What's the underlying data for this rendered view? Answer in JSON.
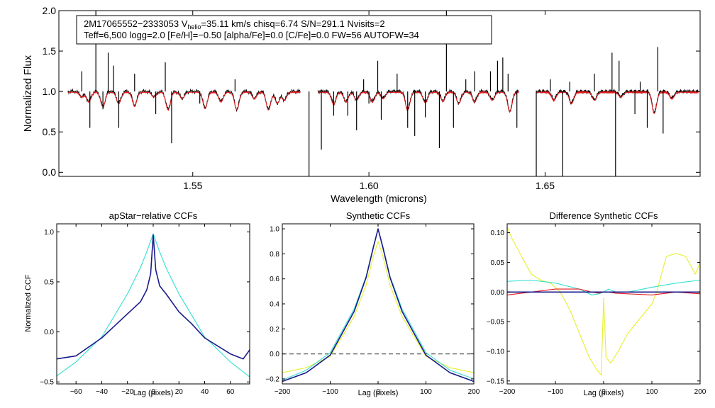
{
  "colors": {
    "observed": "#000000",
    "model": "#e41a1c",
    "cyan": "#2fe0d0",
    "navy": "#1a1a8c",
    "red": "#e41a1c",
    "yellow": "#e6f02a",
    "grey": "#555555"
  },
  "chart_data": [
    {
      "type": "line",
      "id": "spectrum",
      "title": "",
      "xlabel": "Wavelength (microns)",
      "ylabel": "Normalized Flux",
      "xlim": [
        1.512,
        1.694
      ],
      "ylim": [
        -0.05,
        2.0
      ],
      "xticks": [
        1.55,
        1.6,
        1.65
      ],
      "xtick_labels": [
        "1.55",
        "1.60",
        "1.65"
      ],
      "yticks": [
        0.0,
        0.5,
        1.0,
        1.5,
        2.0
      ],
      "ytick_labels": [
        "0.0",
        "0.5",
        "1.0",
        "1.5",
        "2.0"
      ],
      "info_line1_prefix": "2M17065552−2333053  V",
      "info_line1_sub": "helio",
      "info_line1_suffix": "=35.11 km/s  chisq=6.74  S/N=291.1  Nvisits=2",
      "info_line2": "Teff=6,500 logg=2.0 [Fe/H]=−0.50 [alpha/Fe]=0.0 [C/Fe]=0.0 FW=56 AUTOFW=34",
      "chips": [
        [
          1.5145,
          1.5805
        ],
        [
          1.5855,
          1.6425
        ],
        [
          1.6475,
          1.6935
        ]
      ],
      "absorption_lines": [
        {
          "w": 1.5185,
          "d": 0.06
        },
        {
          "w": 1.5205,
          "d": 0.12
        },
        {
          "w": 1.5245,
          "d": 0.18
        },
        {
          "w": 1.529,
          "d": 0.14
        },
        {
          "w": 1.5335,
          "d": 0.17
        },
        {
          "w": 1.539,
          "d": 0.06
        },
        {
          "w": 1.543,
          "d": 0.22
        },
        {
          "w": 1.547,
          "d": 0.08
        },
        {
          "w": 1.5535,
          "d": 0.2
        },
        {
          "w": 1.558,
          "d": 0.12
        },
        {
          "w": 1.5625,
          "d": 0.22
        },
        {
          "w": 1.5675,
          "d": 0.08
        },
        {
          "w": 1.5715,
          "d": 0.22
        },
        {
          "w": 1.574,
          "d": 0.14
        },
        {
          "w": 1.576,
          "d": 0.1
        },
        {
          "w": 1.59,
          "d": 0.15
        },
        {
          "w": 1.5935,
          "d": 0.12
        },
        {
          "w": 1.5965,
          "d": 0.1
        },
        {
          "w": 1.601,
          "d": 0.12
        },
        {
          "w": 1.604,
          "d": 0.08
        },
        {
          "w": 1.611,
          "d": 0.22
        },
        {
          "w": 1.616,
          "d": 0.13
        },
        {
          "w": 1.621,
          "d": 0.11
        },
        {
          "w": 1.6255,
          "d": 0.14
        },
        {
          "w": 1.63,
          "d": 0.12
        },
        {
          "w": 1.635,
          "d": 0.1
        },
        {
          "w": 1.64,
          "d": 0.24
        },
        {
          "w": 1.6525,
          "d": 0.1
        },
        {
          "w": 1.6575,
          "d": 0.14
        },
        {
          "w": 1.664,
          "d": 0.1
        },
        {
          "w": 1.6715,
          "d": 0.06
        },
        {
          "w": 1.681,
          "d": 0.26
        },
        {
          "w": 1.686,
          "d": 0.08
        }
      ],
      "spikes": [
        {
          "w": 1.5185,
          "top": 1.25
        },
        {
          "w": 1.5208,
          "top": 0.55
        },
        {
          "w": 1.5225,
          "top": 2.0
        },
        {
          "w": 1.5245,
          "top": 0.78
        },
        {
          "w": 1.526,
          "top": 1.48
        },
        {
          "w": 1.5275,
          "top": 1.32
        },
        {
          "w": 1.529,
          "top": 0.55
        },
        {
          "w": 1.5335,
          "top": 1.22
        },
        {
          "w": 1.5395,
          "top": 0.72
        },
        {
          "w": 1.5422,
          "top": 1.36
        },
        {
          "w": 1.544,
          "top": 0.36
        },
        {
          "w": 1.552,
          "top": 0.85
        },
        {
          "w": 1.562,
          "top": 1.15
        },
        {
          "w": 1.583,
          "top": -0.05
        },
        {
          "w": 1.5865,
          "top": 0.28
        },
        {
          "w": 1.59,
          "top": 0.7
        },
        {
          "w": 1.594,
          "top": 0.7
        },
        {
          "w": 1.5965,
          "top": 0.52
        },
        {
          "w": 1.5985,
          "top": 1.15
        },
        {
          "w": 1.6,
          "top": 0.85
        },
        {
          "w": 1.6025,
          "top": 1.38
        },
        {
          "w": 1.6035,
          "top": 0.65
        },
        {
          "w": 1.608,
          "top": 1.22
        },
        {
          "w": 1.611,
          "top": 0.55
        },
        {
          "w": 1.613,
          "top": 0.45
        },
        {
          "w": 1.616,
          "top": 0.68
        },
        {
          "w": 1.62,
          "top": 0.3
        },
        {
          "w": 1.622,
          "top": 2.0
        },
        {
          "w": 1.624,
          "top": 0.55
        },
        {
          "w": 1.6275,
          "top": 1.15
        },
        {
          "w": 1.63,
          "top": 1.25
        },
        {
          "w": 1.6345,
          "top": 1.25
        },
        {
          "w": 1.6365,
          "top": 1.38
        },
        {
          "w": 1.638,
          "top": 1.42
        },
        {
          "w": 1.6395,
          "top": 1.22
        },
        {
          "w": 1.642,
          "top": 0.55
        },
        {
          "w": 1.6475,
          "top": -0.05
        },
        {
          "w": 1.6515,
          "top": 1.15
        },
        {
          "w": 1.655,
          "top": -0.05
        },
        {
          "w": 1.657,
          "top": 1.12
        },
        {
          "w": 1.664,
          "top": 1.22
        },
        {
          "w": 1.669,
          "top": 1.48
        },
        {
          "w": 1.67,
          "top": -0.05
        },
        {
          "w": 1.671,
          "top": 1.38
        },
        {
          "w": 1.6755,
          "top": 0.72
        },
        {
          "w": 1.677,
          "top": 1.12
        },
        {
          "w": 1.679,
          "top": 0.55
        },
        {
          "w": 1.682,
          "top": 1.55
        },
        {
          "w": 1.6835,
          "top": 0.48
        }
      ]
    },
    {
      "type": "line",
      "id": "apstar_ccf",
      "title": "apStar−relative CCFs",
      "xlabel": "Lag (pixels)",
      "ylabel": "Normalized CCF",
      "xlim": [
        -75,
        75
      ],
      "ylim": [
        -0.52,
        1.08
      ],
      "xticks": [
        -60,
        -40,
        -20,
        0,
        20,
        40,
        60
      ],
      "xtick_labels": [
        "−60",
        "−40",
        "−20",
        "0",
        "20",
        "40",
        "60"
      ],
      "yticks": [
        -0.5,
        0.0,
        0.5,
        1.0
      ],
      "ytick_labels": [
        "−0.5",
        "0.0",
        "0.5",
        "1.0"
      ],
      "series": [
        {
          "name": "cyan",
          "color_key": "cyan",
          "x": [
            -75,
            -60,
            -40,
            -20,
            -10,
            -5,
            0,
            5,
            10,
            20,
            40,
            60,
            75
          ],
          "y": [
            -0.44,
            -0.3,
            -0.05,
            0.38,
            0.64,
            0.8,
            0.98,
            0.8,
            0.64,
            0.38,
            -0.05,
            -0.3,
            -0.45
          ]
        },
        {
          "name": "navy",
          "color_key": "navy",
          "x": [
            -75,
            -60,
            -40,
            -30,
            -20,
            -10,
            -5,
            -2,
            0,
            2,
            5,
            10,
            20,
            30,
            40,
            60,
            70,
            75
          ],
          "y": [
            -0.27,
            -0.24,
            -0.06,
            0.06,
            0.18,
            0.3,
            0.42,
            0.58,
            0.97,
            0.62,
            0.46,
            0.38,
            0.2,
            0.08,
            -0.06,
            -0.22,
            -0.27,
            -0.18
          ]
        }
      ]
    },
    {
      "type": "line",
      "id": "synthetic_ccf",
      "title": "Synthetic CCFs",
      "xlabel": "Lag (pixels)",
      "ylabel": "",
      "xlim": [
        -200,
        200
      ],
      "ylim": [
        -0.24,
        1.04
      ],
      "xticks": [
        -200,
        -100,
        0,
        100,
        200
      ],
      "xtick_labels": [
        "−200",
        "−100",
        "0",
        "100",
        "200"
      ],
      "yticks": [
        -0.2,
        0.0,
        0.2,
        0.4,
        0.6,
        0.8,
        1.0
      ],
      "ytick_labels": [
        "−0.2",
        "0.0",
        "0.2",
        "0.4",
        "0.6",
        "0.8",
        "1.0"
      ],
      "zero_line": 0.0,
      "series": [
        {
          "name": "yellow",
          "color_key": "yellow",
          "x": [
            -200,
            -150,
            -100,
            -50,
            -25,
            -10,
            0,
            10,
            25,
            50,
            100,
            150,
            200
          ],
          "y": [
            -0.15,
            -0.11,
            -0.02,
            0.3,
            0.55,
            0.78,
            0.9,
            0.78,
            0.55,
            0.3,
            -0.02,
            -0.11,
            -0.15
          ]
        },
        {
          "name": "cyan",
          "color_key": "cyan",
          "x": [
            -200,
            -150,
            -100,
            -50,
            -25,
            -10,
            0,
            10,
            25,
            50,
            100,
            150,
            200
          ],
          "y": [
            -0.21,
            -0.13,
            0.01,
            0.36,
            0.62,
            0.86,
            1.0,
            0.86,
            0.62,
            0.36,
            0.01,
            -0.13,
            -0.2
          ]
        },
        {
          "name": "red",
          "color_key": "red",
          "x": [
            -200,
            -150,
            -100,
            -50,
            -25,
            -10,
            0,
            10,
            25,
            50,
            100,
            150,
            200
          ],
          "y": [
            -0.22,
            -0.15,
            -0.01,
            0.34,
            0.61,
            0.85,
            1.0,
            0.85,
            0.61,
            0.34,
            -0.01,
            -0.15,
            -0.22
          ]
        },
        {
          "name": "navy",
          "color_key": "navy",
          "x": [
            -200,
            -150,
            -100,
            -50,
            -25,
            -10,
            0,
            10,
            25,
            50,
            100,
            150,
            200
          ],
          "y": [
            -0.22,
            -0.15,
            -0.01,
            0.34,
            0.61,
            0.85,
            1.0,
            0.85,
            0.61,
            0.34,
            -0.01,
            -0.15,
            -0.22
          ]
        }
      ]
    },
    {
      "type": "line",
      "id": "difference_ccf",
      "title": "Difference Synthetic CCFs",
      "xlabel": "Lag (pixels)",
      "ylabel": "",
      "xlim": [
        -200,
        200
      ],
      "ylim": [
        -0.155,
        0.115
      ],
      "xticks": [
        -200,
        -100,
        0,
        100,
        200
      ],
      "xtick_labels": [
        "−200",
        "−100",
        "0",
        "100",
        "200"
      ],
      "yticks": [
        -0.15,
        -0.1,
        -0.05,
        0.0,
        0.05,
        0.1
      ],
      "ytick_labels": [
        "−0.15",
        "−0.10",
        "−0.05",
        "0.00",
        "0.05",
        "0.10"
      ],
      "zero_line": 0.0,
      "series": [
        {
          "name": "yellow",
          "color_key": "yellow",
          "x": [
            -200,
            -190,
            -170,
            -150,
            -130,
            -110,
            -90,
            -70,
            -50,
            -30,
            -15,
            -5,
            0,
            5,
            15,
            30,
            50,
            70,
            90,
            100,
            110,
            120,
            130,
            150,
            170,
            190,
            200
          ],
          "y": [
            0.11,
            0.09,
            0.06,
            0.03,
            0.02,
            0.015,
            0.0,
            -0.03,
            -0.07,
            -0.11,
            -0.13,
            -0.14,
            -0.01,
            -0.11,
            -0.12,
            -0.1,
            -0.07,
            -0.05,
            -0.03,
            -0.02,
            0.0,
            0.03,
            0.06,
            0.065,
            0.06,
            0.03,
            0.05
          ]
        },
        {
          "name": "cyan",
          "color_key": "cyan",
          "x": [
            -200,
            -150,
            -100,
            -50,
            -25,
            -10,
            0,
            10,
            25,
            50,
            100,
            150,
            200
          ],
          "y": [
            0.018,
            0.02,
            0.015,
            0.005,
            -0.005,
            -0.003,
            0.0,
            0.005,
            0.0,
            0.0,
            0.008,
            0.015,
            0.02
          ]
        },
        {
          "name": "red",
          "color_key": "red",
          "x": [
            -200,
            -150,
            -100,
            -50,
            -25,
            -10,
            0,
            10,
            25,
            50,
            100,
            150,
            200
          ],
          "y": [
            -0.005,
            0.0,
            0.005,
            0.005,
            0.0,
            -0.002,
            0.0,
            0.0,
            -0.002,
            -0.003,
            -0.005,
            0.0,
            -0.003
          ]
        },
        {
          "name": "navy",
          "color_key": "navy",
          "x": [
            -200,
            200
          ],
          "y": [
            0.0,
            0.0
          ]
        }
      ]
    }
  ]
}
